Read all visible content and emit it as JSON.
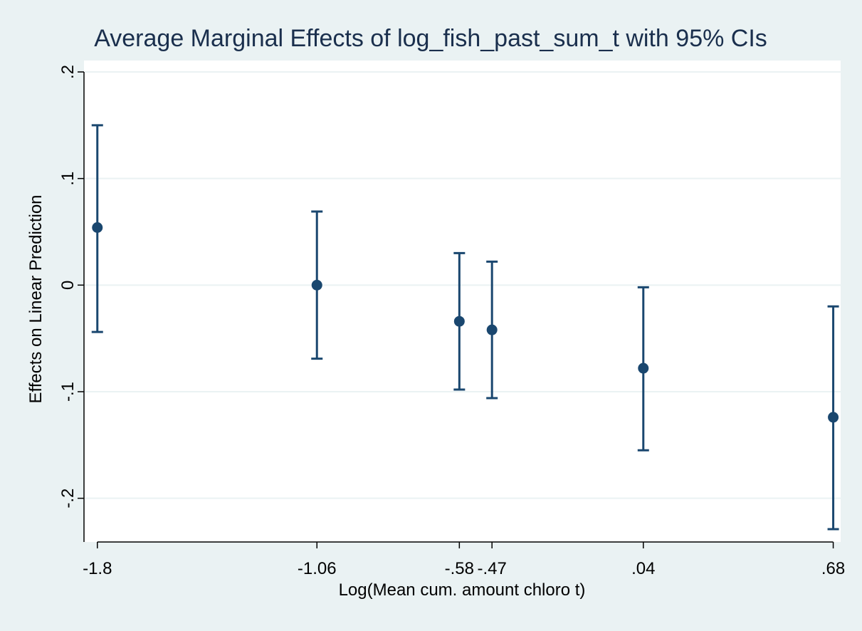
{
  "chart_data": {
    "type": "scatter",
    "title": "Average Marginal Effects of log_fish_past_sum_t with 95% CIs",
    "xlabel": "Log(Mean cum. amount chloro t)",
    "ylabel": "Effects on Linear Prediction",
    "x_ticks": [
      {
        "value": -1.8,
        "label": "-1.8"
      },
      {
        "value": -1.06,
        "label": "-1.06"
      },
      {
        "value": -0.58,
        "label": "-.58"
      },
      {
        "value": -0.47,
        "label": "-.47"
      },
      {
        "value": 0.04,
        "label": ".04"
      },
      {
        "value": 0.68,
        "label": ".68"
      }
    ],
    "y_ticks": [
      {
        "value": 0.2,
        "label": ".2"
      },
      {
        "value": 0.1,
        "label": ".1"
      },
      {
        "value": 0,
        "label": "0"
      },
      {
        "value": -0.1,
        "label": "-.1"
      },
      {
        "value": -0.2,
        "label": "-.2"
      }
    ],
    "xlim": [
      -1.845,
      0.705
    ],
    "ylim": [
      -0.241,
      0.2
    ],
    "grid": "horizontal",
    "colors": {
      "marker": "#1a476f",
      "grid": "#eaf2f3",
      "plot_background": "#ffffff",
      "outer_background": "#eaf2f3",
      "axis": "#000000"
    },
    "series": [
      {
        "points": [
          {
            "x": -1.8,
            "y": 0.054,
            "lower": -0.044,
            "upper": 0.15
          },
          {
            "x": -1.06,
            "y": 0.0,
            "lower": -0.069,
            "upper": 0.069
          },
          {
            "x": -0.58,
            "y": -0.034,
            "lower": -0.098,
            "upper": 0.03
          },
          {
            "x": -0.47,
            "y": -0.042,
            "lower": -0.106,
            "upper": 0.022
          },
          {
            "x": 0.04,
            "y": -0.078,
            "lower": -0.155,
            "upper": -0.002
          },
          {
            "x": 0.68,
            "y": -0.124,
            "lower": -0.229,
            "upper": -0.02
          }
        ]
      }
    ]
  }
}
